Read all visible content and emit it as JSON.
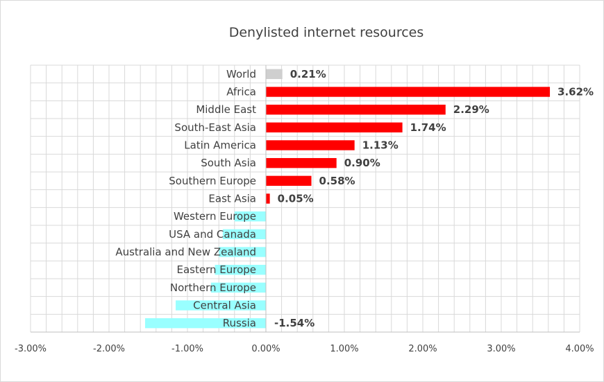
{
  "chart_data": {
    "type": "bar",
    "orientation": "horizontal",
    "title": "Denylisted internet resources",
    "xlabel": "",
    "ylabel": "",
    "xlim": [
      -0.03,
      0.04
    ],
    "x_ticks": [
      -0.03,
      -0.02,
      -0.01,
      0,
      0.01,
      0.02,
      0.03,
      0.04
    ],
    "x_tick_labels": [
      "-3.00%",
      "-2.00%",
      "-1.00%",
      "0.00%",
      "1.00%",
      "2.00%",
      "3.00%",
      "4.00%"
    ],
    "grid": true,
    "legend": "none",
    "colors": {
      "world": "#cfcfcf",
      "positive": "#ff0000",
      "negative": "#99ffff",
      "grid": "#d9d9d9",
      "text": "#404040"
    },
    "categories": [
      "World",
      "Africa",
      "Middle East",
      "South-East Asia",
      "Latin America",
      "South Asia",
      "Southern Europe",
      "East Asia",
      "Western Europe",
      "USA and Canada",
      "Australia and New Zealand",
      "Eastern Europe",
      "Northern Europe",
      "Central Asia",
      "Russia"
    ],
    "values": [
      0.0021,
      0.0362,
      0.0229,
      0.0174,
      0.0113,
      0.009,
      0.0058,
      0.0005,
      -0.004,
      -0.0055,
      -0.006,
      -0.0065,
      -0.007,
      -0.0115,
      -0.0154
    ],
    "data_labels": [
      "0.21%",
      "3.62%",
      "2.29%",
      "1.74%",
      "1.13%",
      "0.90%",
      "0.58%",
      "0.05%",
      "",
      "",
      "",
      "",
      "",
      "",
      "-1.54%"
    ]
  }
}
